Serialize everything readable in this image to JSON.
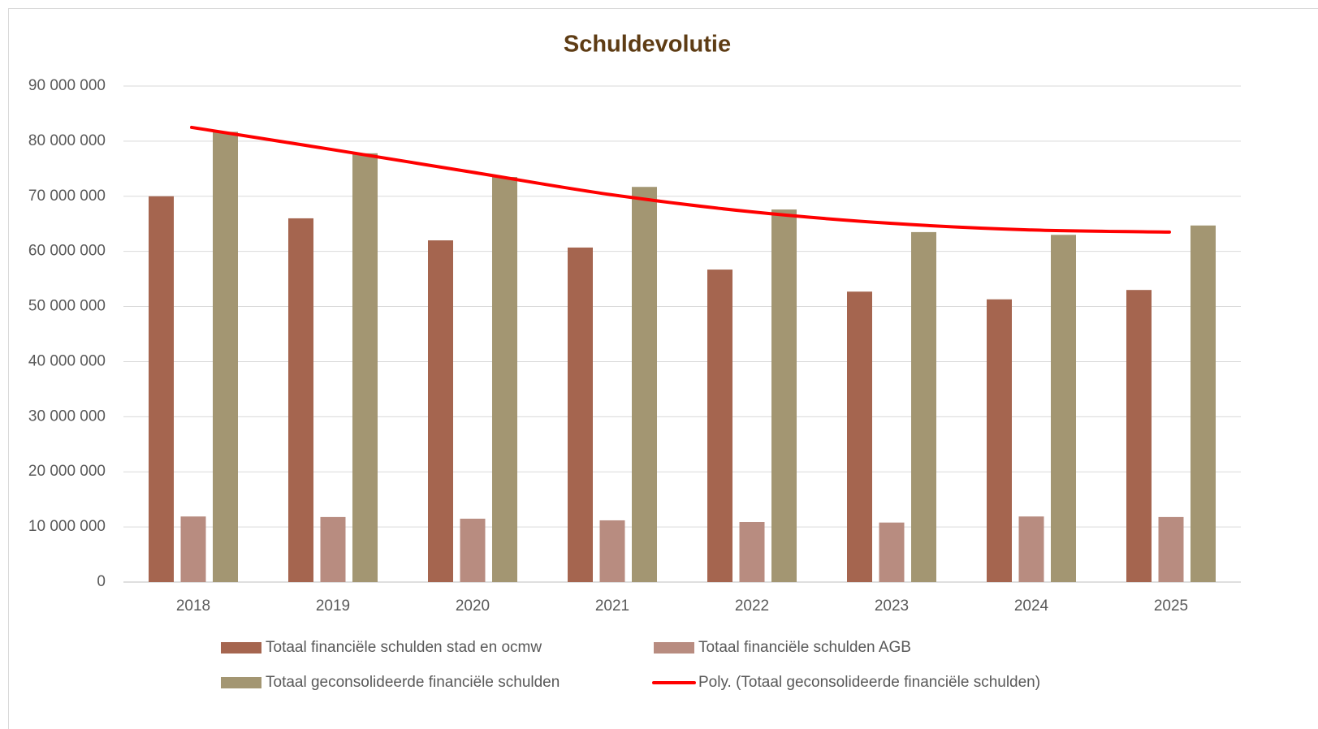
{
  "chart_data": {
    "type": "bar",
    "title": "Schuldevolutie",
    "categories": [
      "2018",
      "2019",
      "2020",
      "2021",
      "2022",
      "2023",
      "2024",
      "2025"
    ],
    "series": [
      {
        "name": "Totaal financiële schulden stad en ocmw",
        "color": "#a5654f",
        "values": [
          70000000,
          66000000,
          62000000,
          60700000,
          56700000,
          52700000,
          51300000,
          53000000
        ]
      },
      {
        "name": "Totaal financiële schulden AGB",
        "color": "#b88c80",
        "values": [
          11900000,
          11800000,
          11500000,
          11200000,
          10900000,
          10800000,
          11900000,
          11800000
        ]
      },
      {
        "name": "Totaal geconsolideerde financiële schulden",
        "color": "#a39672",
        "values": [
          81700000,
          77800000,
          73500000,
          71700000,
          67600000,
          63500000,
          63000000,
          64700000
        ]
      },
      {
        "name": "Poly. (Totaal geconsolideerde financiële schulden)",
        "color": "#ff0000",
        "type": "line",
        "values": [
          82500000,
          78500000,
          74400000,
          70300000,
          67200000,
          65100000,
          63900000,
          63500000
        ]
      }
    ],
    "ylim": [
      0,
      90000000
    ],
    "yticks": [
      0,
      {
        "value": 10000000,
        "label": "10 000 000"
      },
      {
        "value": 20000000,
        "label": "20 000 000"
      },
      {
        "value": 30000000,
        "label": "30 000 000"
      },
      {
        "value": 40000000,
        "label": "40 000 000"
      },
      {
        "value": 50000000,
        "label": "50 000 000"
      },
      {
        "value": 60000000,
        "label": "60 000 000"
      },
      {
        "value": 70000000,
        "label": "70 000 000"
      },
      {
        "value": 80000000,
        "label": "80 000 000"
      },
      {
        "value": 90000000,
        "label": "90 000 000"
      }
    ],
    "grid": true
  }
}
